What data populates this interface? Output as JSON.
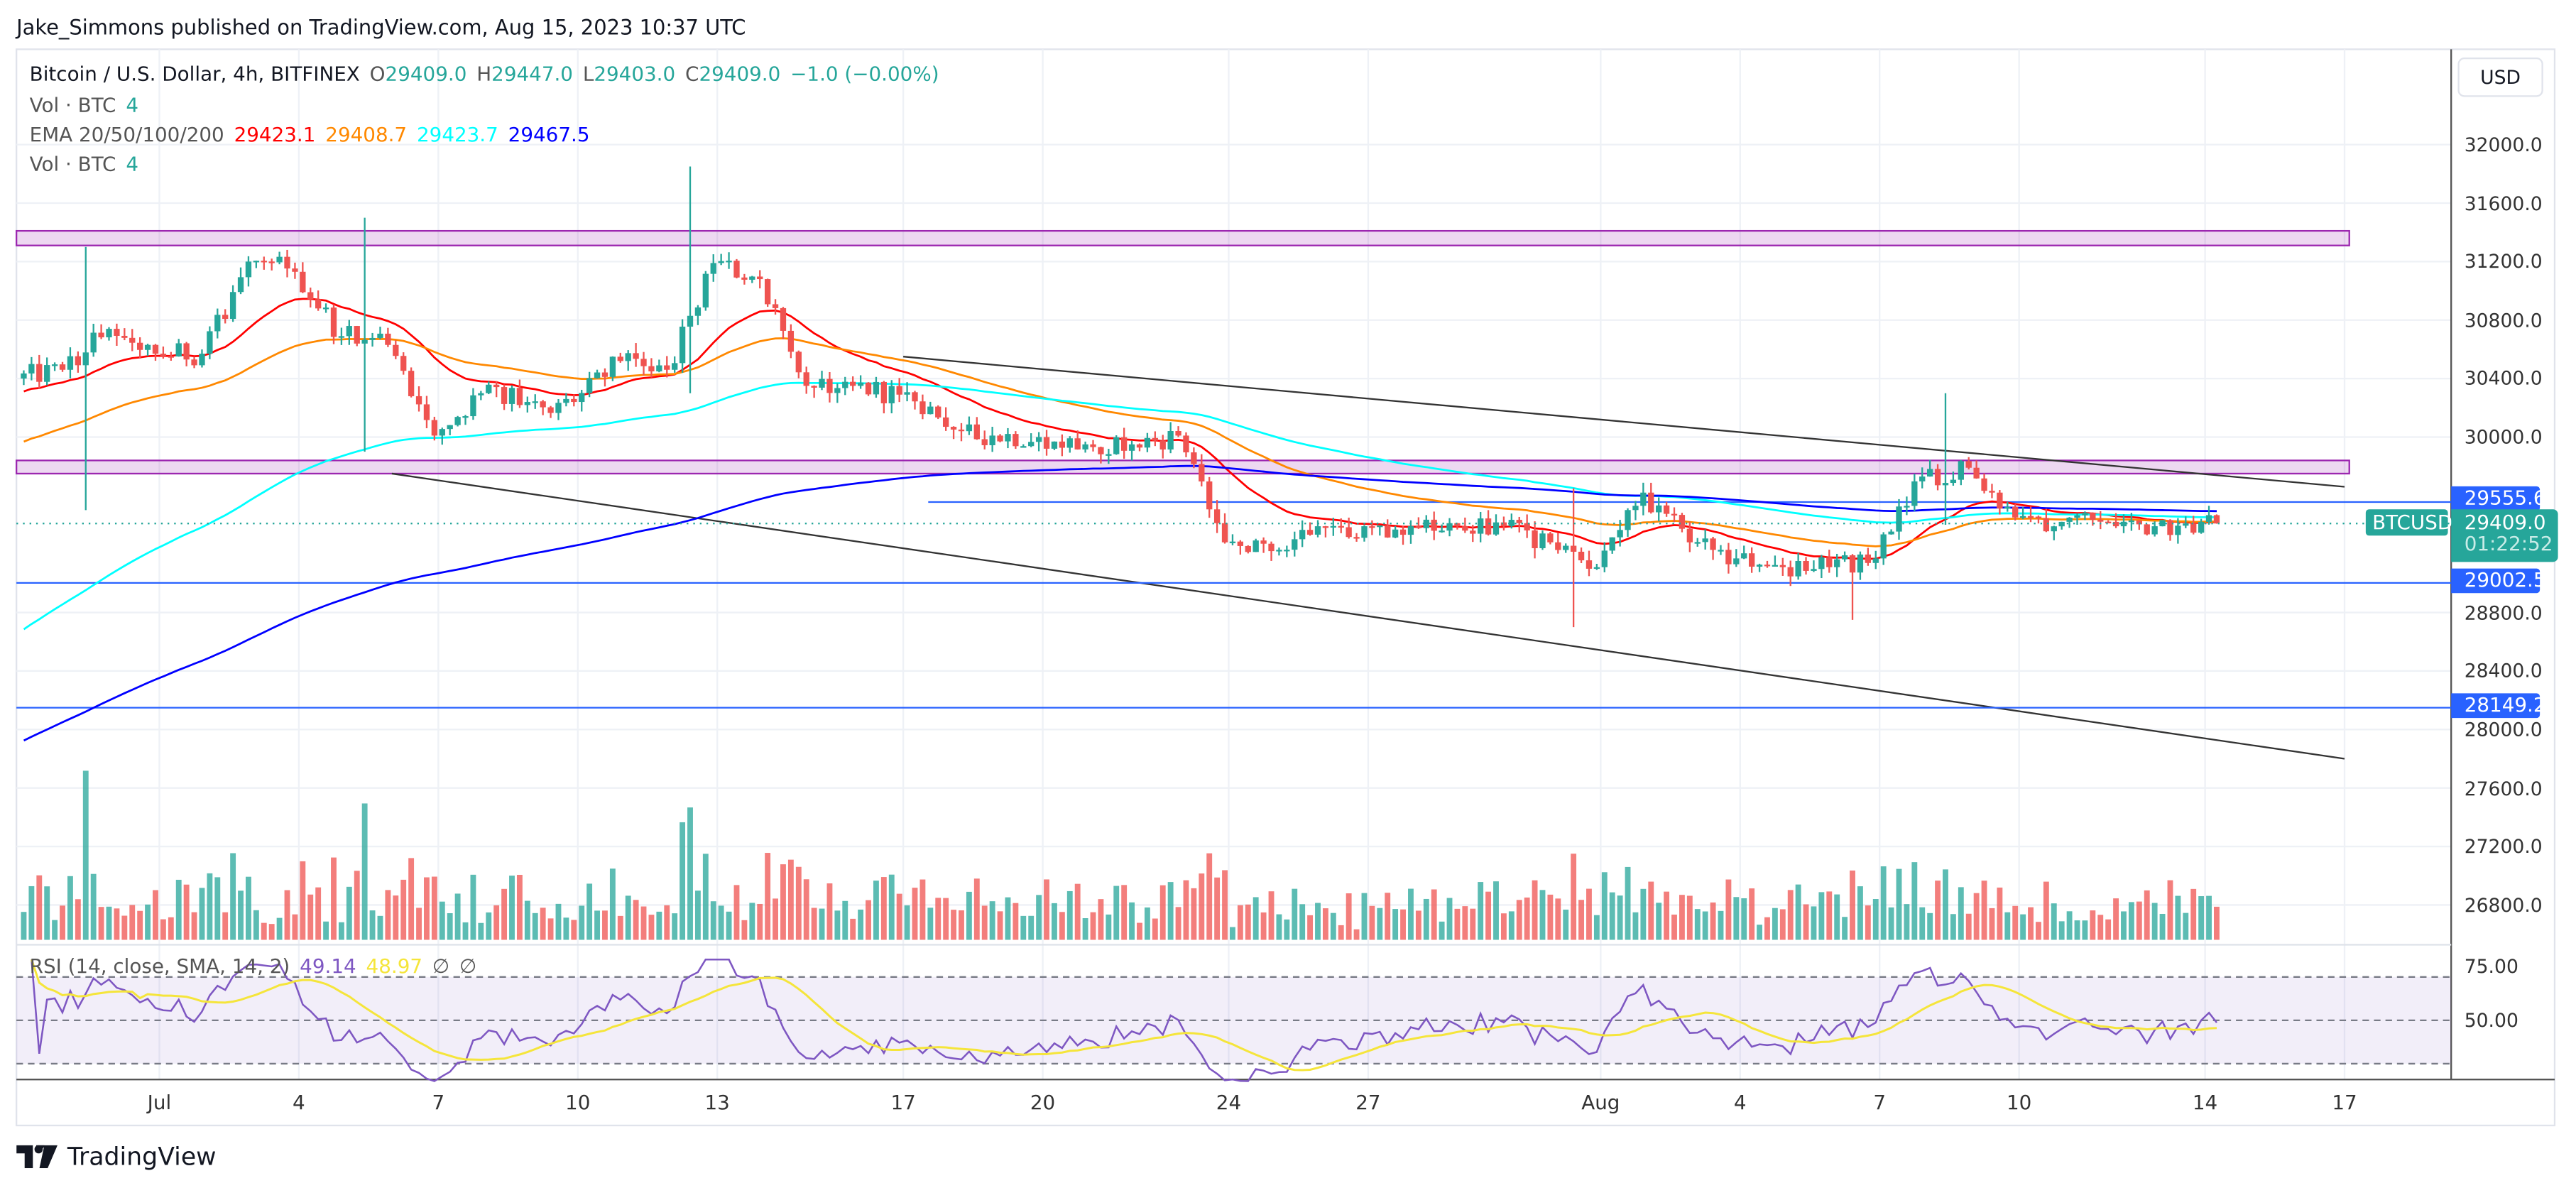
{
  "header": "Jake_Simmons published on TradingView.com, Aug 15, 2023 10:37 UTC",
  "legend": {
    "symbol": "Bitcoin / U.S. Dollar, 4h, BITFINEX",
    "o_label": "O",
    "o": "29409.0",
    "h_label": "H",
    "h": "29447.0",
    "l_label": "L",
    "l": "29403.0",
    "c_label": "C",
    "c": "29409.0",
    "change": "−1.0 (−0.00%)",
    "vol1": "Vol · BTC",
    "vol1_val": "4",
    "ema": "EMA 20/50/100/200",
    "ema20": "29423.1",
    "ema50": "29408.7",
    "ema100": "29423.7",
    "ema200": "29467.5",
    "vol2": "Vol · BTC",
    "vol2_val": "4",
    "rsi": "RSI (14, close, SMA, 14, 2)",
    "rsi_val": "49.14",
    "rsi_sma": "48.97",
    "rsi_na1": "∅",
    "rsi_na2": "∅"
  },
  "currency_button": "USD",
  "colors": {
    "up": "#26a69a",
    "down": "#ef5350",
    "ema20": "#ff0000",
    "ema50": "#ff8800",
    "ema100": "#00ffff",
    "ema200": "#0000ff",
    "rsi": "#7e57c2",
    "rsi_sma": "#f5e53b",
    "hline": "#2962ff",
    "zone": "#9c27b0"
  },
  "price_axis": [
    "32000.0",
    "31600.0",
    "31200.0",
    "30800.0",
    "30400.0",
    "30000.0",
    "28800.0",
    "28400.0",
    "28000.0",
    "27600.0",
    "27200.0",
    "26800.0"
  ],
  "rsi_axis": [
    "75.00",
    "50.00"
  ],
  "time_axis": [
    "Jul",
    "4",
    "7",
    "10",
    "13",
    "17",
    "20",
    "24",
    "27",
    "Aug",
    "4",
    "7",
    "10",
    "14",
    "17"
  ],
  "tags": {
    "line1": "29555.6",
    "symbol": "BTCUSD",
    "price": "29409.0",
    "countdown": "01:22:52",
    "line2": "29002.5",
    "line3": "28149.2"
  },
  "logo": "TradingView",
  "chart_data": {
    "type": "candlestick",
    "timeframe": "4h",
    "start_date": "2023-06-28",
    "daily_close": [
      30400,
      30460,
      30740,
      30570,
      30570,
      31200,
      31130,
      30690,
      30630,
      30010,
      30300,
      30240,
      30240,
      30520,
      30460,
      31190,
      31080,
      30350,
      30350,
      30290,
      30070,
      30010,
      30000,
      29950,
      29950,
      30010,
      29280,
      29220,
      29390,
      29390,
      29390,
      29390,
      29390,
      29280,
      29110,
      29620,
      29280,
      29170,
      29110,
      29110,
      29170,
      29730,
      29790,
      29450,
      29420,
      29420,
      29390,
      29420,
      29409
    ],
    "spikes": [
      {
        "day": 2,
        "high": 31300,
        "low": 29500
      },
      {
        "day": 8,
        "high": 31500,
        "low": 29900
      },
      {
        "day": 15,
        "high": 31850,
        "low": 30300
      },
      {
        "day": 34,
        "high": 29650,
        "low": 28700
      },
      {
        "day": 40,
        "high": 29200,
        "low": 28750
      },
      {
        "day": 42,
        "high": 30300,
        "low": 29400
      }
    ],
    "ema_seed": {
      "ema20": 30300,
      "ema50": 29950,
      "ema100": 28650,
      "ema200": 27900
    },
    "zones": [
      {
        "top": 31410,
        "bottom": 31310
      },
      {
        "top": 29840,
        "bottom": 29750
      }
    ],
    "hlines": [
      29555.6,
      29002.5,
      28149.2
    ],
    "trendlines": [
      {
        "from": [
          "2023-07-17",
          30550
        ],
        "to": [
          "2023-08-17",
          29660
        ]
      },
      {
        "from": [
          "2023-07-06",
          29750
        ],
        "to": [
          "2023-08-17",
          27800
        ]
      }
    ],
    "ylim": [
      26700,
      32300
    ],
    "rsi_levels": [
      70,
      50,
      30
    ]
  }
}
